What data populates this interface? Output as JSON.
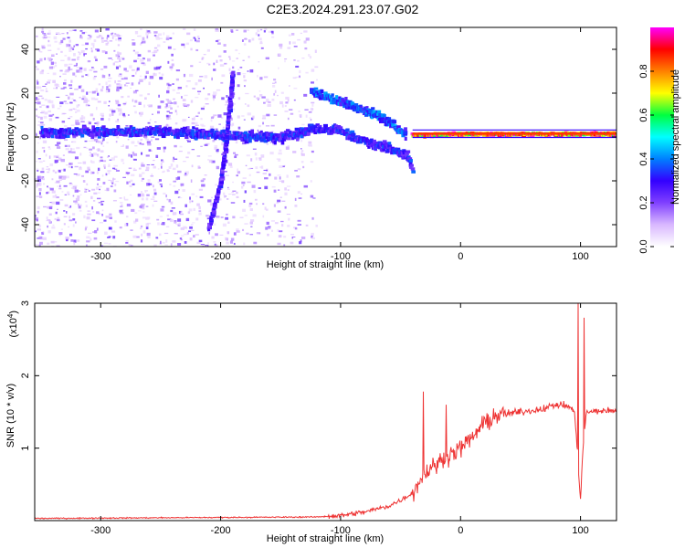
{
  "page": {
    "title": "C2E3.2024.291.23.07.G02"
  },
  "chart_data": [
    {
      "type": "heatmap",
      "xlabel": "Height of straight line (km)",
      "ylabel": "Frequency (Hz)",
      "xlim": [
        -355,
        130
      ],
      "ylim": [
        -50,
        50
      ],
      "x_ticks": [
        -300,
        -200,
        -100,
        0,
        100
      ],
      "y_ticks": [
        -40,
        -20,
        0,
        20,
        40
      ],
      "colorbar": {
        "label": "Normalized spectral amplitude",
        "range": [
          0.0,
          1.0
        ],
        "ticks": [
          0.0,
          0.2,
          0.4,
          0.6,
          0.8
        ],
        "tick_labels": [
          "0.0",
          "0.2",
          "0.4",
          "0.6",
          "0.8"
        ],
        "colormap": [
          "#ffffff",
          "#d9b8ff",
          "#8040ff",
          "#3300ff",
          "#0080ff",
          "#00ffff",
          "#00ff40",
          "#ffff00",
          "#ff8000",
          "#ff0000",
          "#ff00ff"
        ]
      },
      "tracks": [
        {
          "x": [
            -350,
            -250,
            -200,
            -150,
            -120,
            -100,
            -80,
            -60,
            -45,
            -40
          ],
          "y": [
            2,
            3,
            1,
            0,
            4,
            3,
            -2,
            -5,
            -8,
            -15
          ],
          "amplitude": 0.35
        },
        {
          "x": [
            -125,
            -110,
            -90,
            -70,
            -55,
            -45
          ],
          "y": [
            21,
            18,
            14,
            10,
            5,
            1
          ],
          "amplitude": 0.4
        },
        {
          "x": [
            -40,
            0,
            50,
            90,
            130
          ],
          "y": [
            1,
            1.5,
            1.5,
            1.5,
            1.5
          ],
          "amplitude": 0.95
        },
        {
          "x": [
            -210,
            -200,
            -195,
            -190
          ],
          "y": [
            -42,
            -20,
            0,
            30
          ],
          "amplitude": 0.3
        }
      ]
    },
    {
      "type": "line",
      "xlabel": "Height of straight line (km)",
      "ylabel": "SNR (10 * v/v)",
      "y_multiplier": "(x10",
      "y_multiplier_exp": "4",
      "xlim": [
        -355,
        130
      ],
      "ylim": [
        0,
        3
      ],
      "x_ticks": [
        -300,
        -200,
        -100,
        0,
        100
      ],
      "y_ticks": [
        1,
        2,
        3
      ],
      "color": "#ee3333",
      "profile": {
        "x": [
          -355,
          -120,
          -100,
          -80,
          -60,
          -50,
          -40,
          -35,
          -30,
          -20,
          -10,
          0,
          10,
          20,
          30,
          40,
          50,
          60,
          70,
          80,
          90,
          95,
          98,
          100,
          102,
          105,
          110,
          120,
          130
        ],
        "y": [
          0.03,
          0.05,
          0.07,
          0.12,
          0.2,
          0.28,
          0.38,
          0.52,
          0.65,
          0.78,
          0.9,
          1.0,
          1.15,
          1.35,
          1.45,
          1.48,
          1.5,
          1.52,
          1.55,
          1.6,
          1.58,
          1.5,
          0.8,
          0.3,
          1.0,
          1.5,
          1.5,
          1.52,
          1.5
        ]
      },
      "spikes": [
        {
          "x": -31,
          "y": 1.78
        },
        {
          "x": -12,
          "y": 1.6
        },
        {
          "x": 98,
          "y": 3.0
        },
        {
          "x": 100,
          "y": 0.3
        },
        {
          "x": 103,
          "y": 2.8
        }
      ]
    }
  ]
}
